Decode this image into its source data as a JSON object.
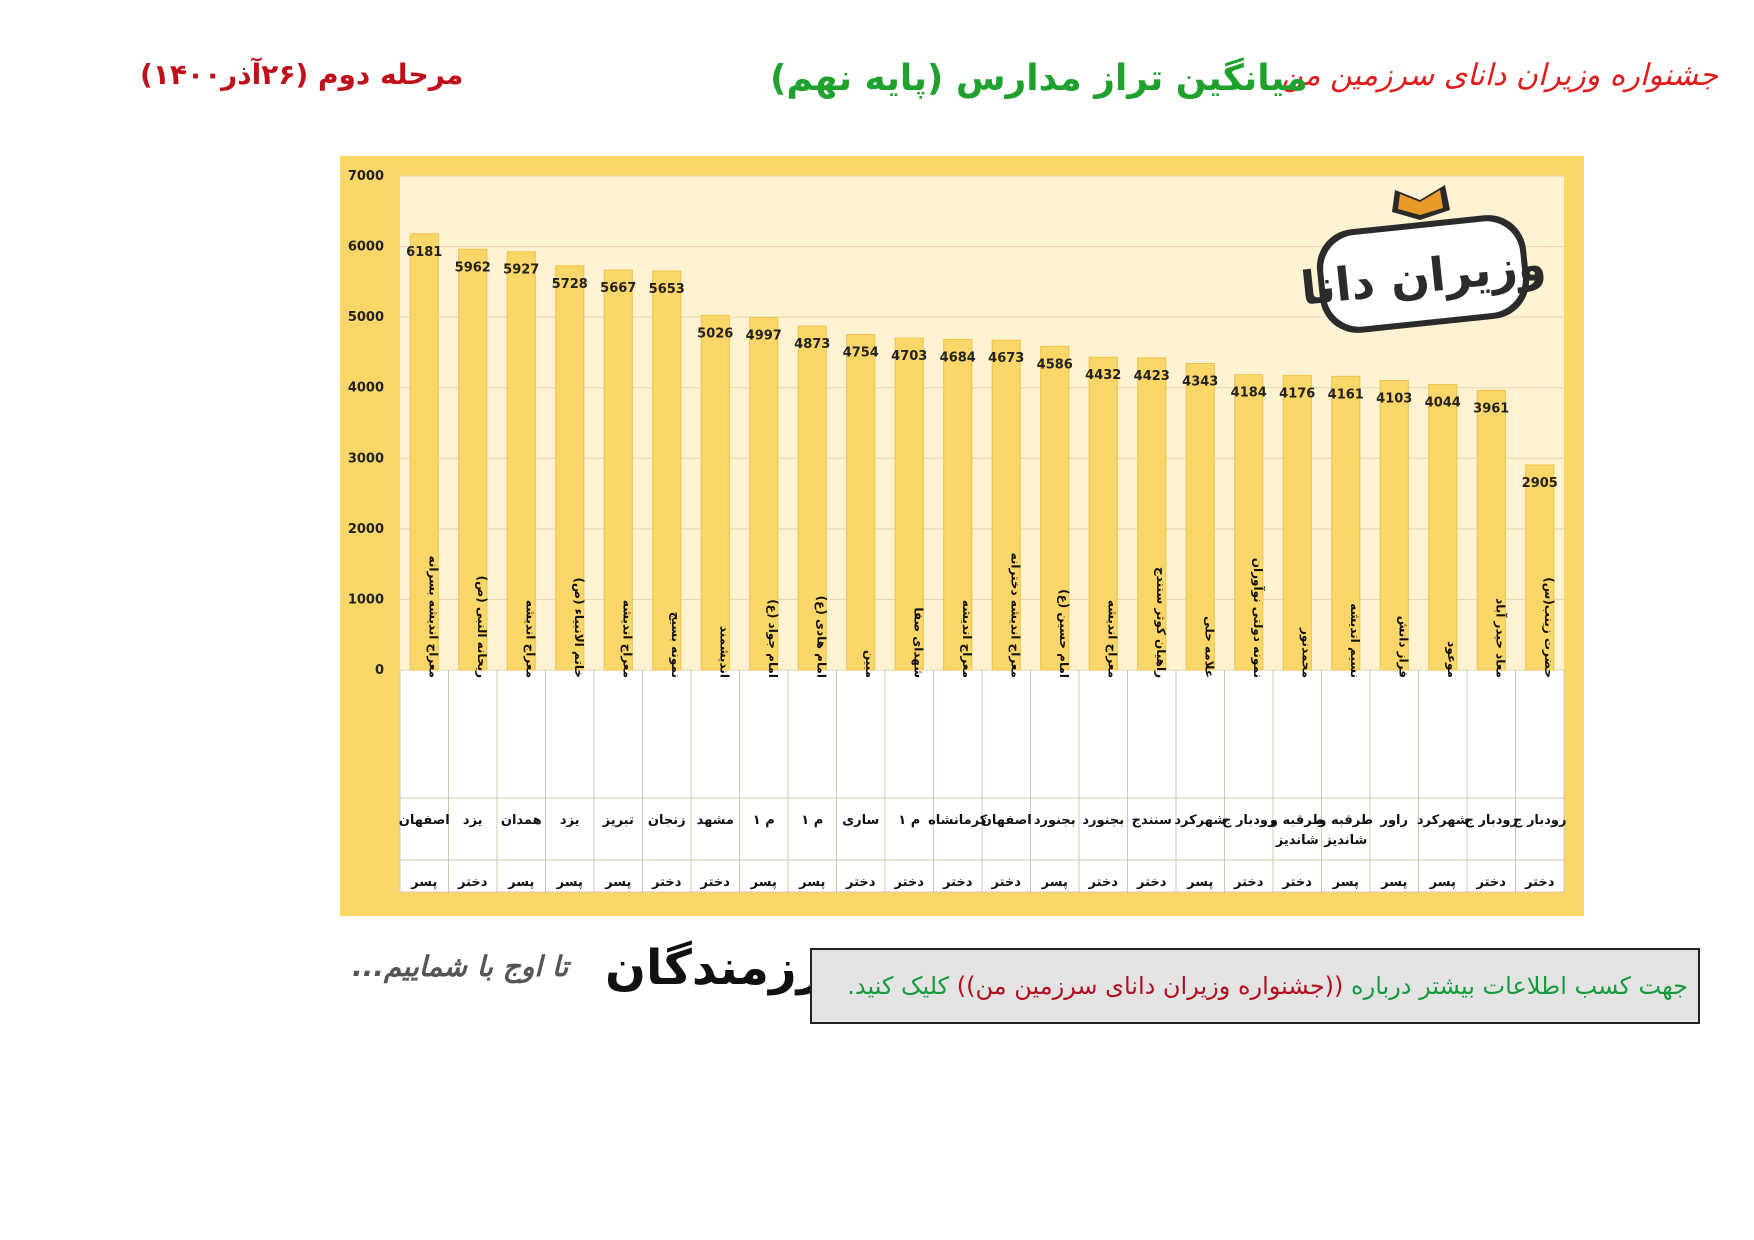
{
  "header": {
    "festival": "جشنواره وزیران دانای سرزمین من",
    "title": "میانگین تراز مدارس (پایه نهم)",
    "stage": "مرحله دوم (۲۶آذر۱۴۰۰)"
  },
  "logo_text": "وزیران دانا",
  "footer": {
    "slogan": "تا اوج با شماییم...",
    "brand": "رزمندگان",
    "info_pre": "جهت کسب اطلاعات بیشتر درباره",
    "info_link": "((جشنواره وزیران دانای سرزمین من))",
    "info_post": "کلیک کنید."
  },
  "colors": {
    "bar": "#fbd669",
    "bar_edge": "#f0c24a",
    "plot_bg": "#fdf3d2",
    "frame": "#fbd669",
    "grid": "#e2d7b0",
    "title_green": "#1fa12e",
    "header_red": "#e01b1b"
  },
  "chart_data": {
    "type": "bar",
    "ylim": [
      0,
      7000
    ],
    "yticks": [
      0,
      1000,
      2000,
      3000,
      4000,
      5000,
      6000,
      7000
    ],
    "grid": true,
    "categories": [
      {
        "school": "معراج اندیشه بسرانه",
        "city": "اصفهان",
        "gender": "پسر"
      },
      {
        "school": "ریحانه النبی (ص)",
        "city": "یزد",
        "gender": "دختر"
      },
      {
        "school": "معراج اندیشه",
        "city": "همدان",
        "gender": "پسر"
      },
      {
        "school": "خاتم الانبیاء (ص)",
        "city": "یزد",
        "gender": "پسر"
      },
      {
        "school": "معراج اندیشه",
        "city": "تبریز",
        "gender": "پسر"
      },
      {
        "school": "نمونه بسیج",
        "city": "زنجان",
        "gender": "دختر"
      },
      {
        "school": "اندیشمند",
        "city": "مشهد",
        "gender": "دختر"
      },
      {
        "school": "امام جواد (ع)",
        "city": "م ۱",
        "gender": "پسر"
      },
      {
        "school": "امام هادی (ع)",
        "city": "م ۱",
        "gender": "پسر"
      },
      {
        "school": "مبین",
        "city": "ساری",
        "gender": "دختر"
      },
      {
        "school": "شهدای صفا",
        "city": "م ۱",
        "gender": "دختر"
      },
      {
        "school": "معراج اندیشه",
        "city": "کرمانشاه",
        "gender": "دختر"
      },
      {
        "school": "معراج اندیشه دخترانه",
        "city": "اصفهان",
        "gender": "دختر"
      },
      {
        "school": "امام حسین (ع)",
        "city": "بجنورد",
        "gender": "پسر"
      },
      {
        "school": "معراج اندیشه",
        "city": "بجنورد",
        "gender": "دختر"
      },
      {
        "school": "راهیان کوثر سنندج",
        "city": "سنندج",
        "gender": "دختر"
      },
      {
        "school": "علامه حلی",
        "city": "شهرکرد",
        "gender": "پسر"
      },
      {
        "school": "نمونه دولتی نوآوران",
        "city": "رودبار ج",
        "gender": "دختر"
      },
      {
        "school": "محمدنور",
        "city": "طرقبه و شاندیز",
        "gender": "دختر"
      },
      {
        "school": "نسیم اندیشه",
        "city": "طرقبه و شاندیز",
        "gender": "پسر"
      },
      {
        "school": "فراز دانش",
        "city": "راور",
        "gender": "پسر"
      },
      {
        "school": "موعود",
        "city": "شهرکرد",
        "gender": "پسر"
      },
      {
        "school": "معاد حیدر آباد",
        "city": "رودبار ج",
        "gender": "دختر"
      },
      {
        "school": "حضرت زینب(س)",
        "city": "رودبار ج",
        "gender": "دختر"
      }
    ],
    "values": [
      6181,
      5962,
      5927,
      5728,
      5667,
      5653,
      5026,
      4997,
      4873,
      4754,
      4703,
      4684,
      4673,
      4586,
      4432,
      4423,
      4343,
      4184,
      4176,
      4161,
      4103,
      4044,
      3961,
      2905
    ]
  }
}
